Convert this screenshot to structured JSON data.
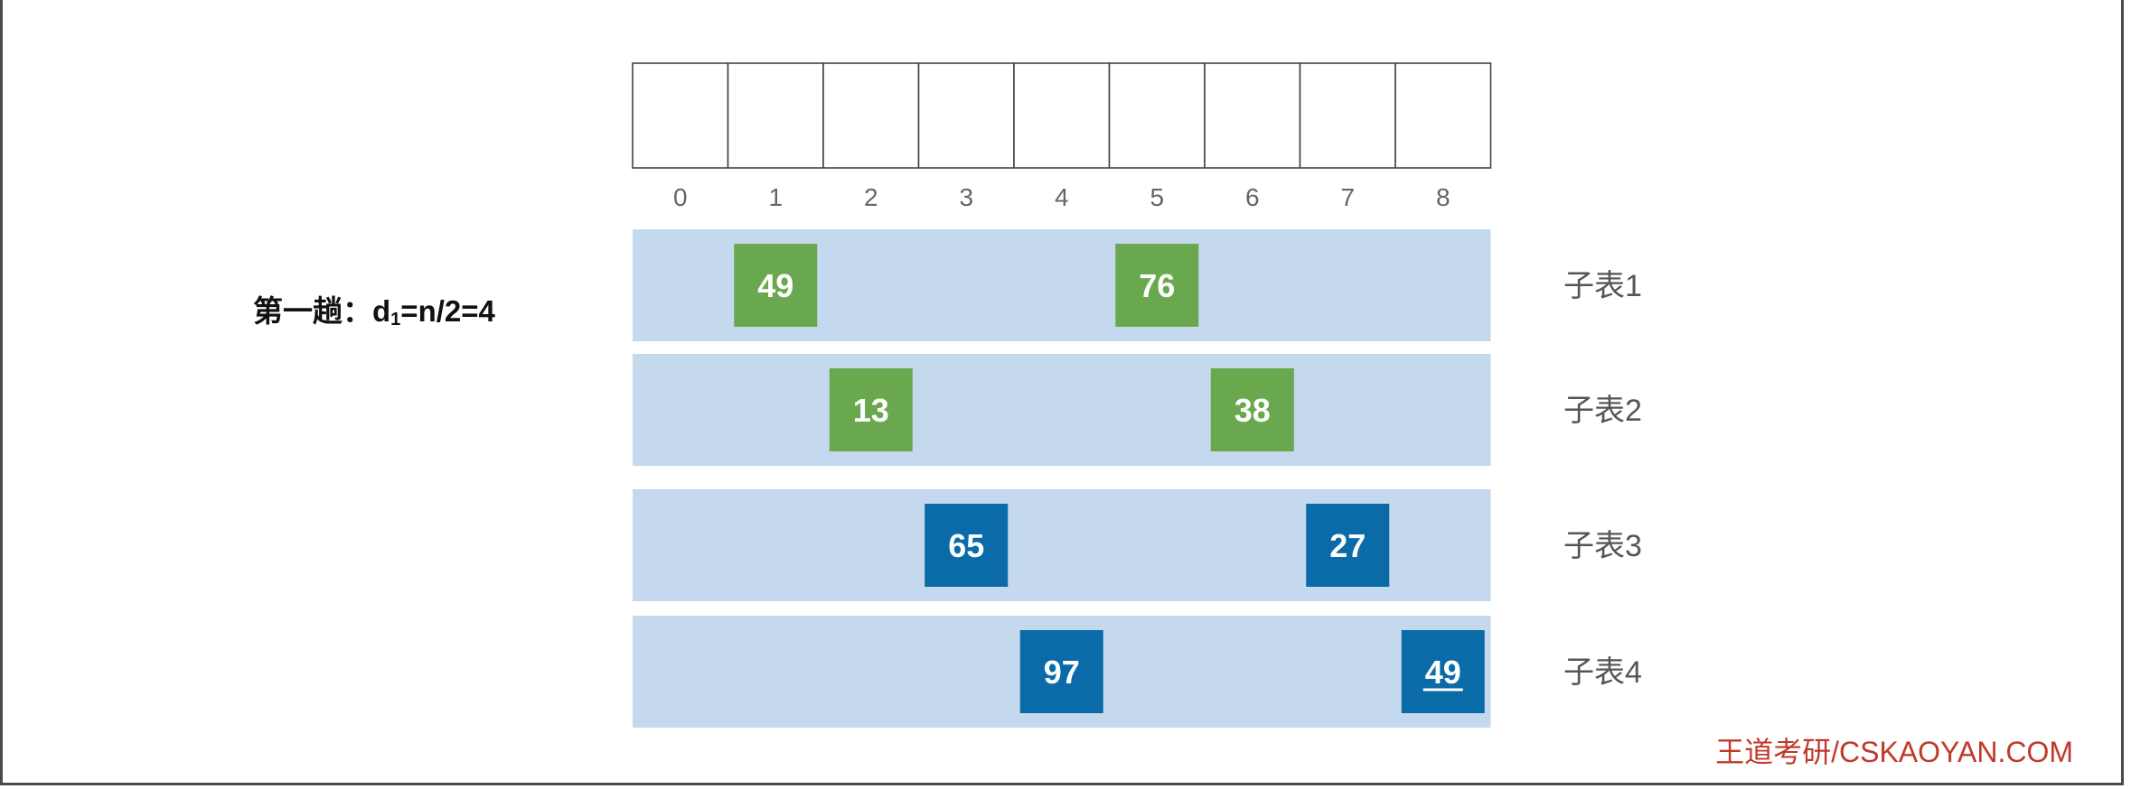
{
  "array": {
    "cell_count": 9,
    "indices": [
      "0",
      "1",
      "2",
      "3",
      "4",
      "5",
      "6",
      "7",
      "8"
    ]
  },
  "pass_label": {
    "prefix": "第一趟：d",
    "sub": "1",
    "suffix": "=n/2=4"
  },
  "sublists": [
    {
      "label": "子表1",
      "color": "#6aa84f",
      "items": [
        {
          "index": 1,
          "value": "49",
          "underline": false
        },
        {
          "index": 5,
          "value": "76",
          "underline": false
        }
      ]
    },
    {
      "label": "子表2",
      "color": "#6aa84f",
      "items": [
        {
          "index": 2,
          "value": "13",
          "underline": false
        },
        {
          "index": 6,
          "value": "38",
          "underline": false
        }
      ]
    },
    {
      "label": "子表3",
      "color": "#0b6aa8",
      "items": [
        {
          "index": 3,
          "value": "65",
          "underline": false
        },
        {
          "index": 7,
          "value": "27",
          "underline": false
        }
      ]
    },
    {
      "label": "子表4",
      "color": "#0b6aa8",
      "items": [
        {
          "index": 4,
          "value": "97",
          "underline": false
        },
        {
          "index": 8,
          "value": "49",
          "underline": true
        }
      ]
    }
  ],
  "row_background": "#c5d9ee",
  "footer": "王道考研/CSKAOYAN.COM"
}
